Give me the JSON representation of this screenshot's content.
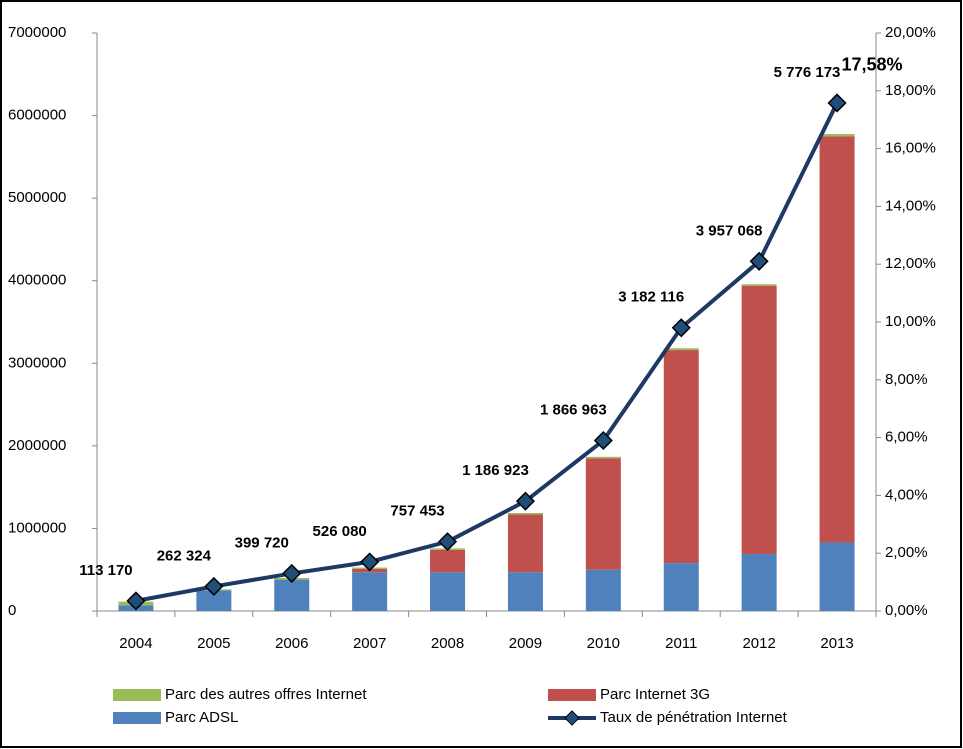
{
  "chart_data": {
    "type": "bar",
    "categories": [
      "2004",
      "2005",
      "2006",
      "2007",
      "2008",
      "2009",
      "2010",
      "2011",
      "2012",
      "2013"
    ],
    "series": [
      {
        "name": "Parc ADSL",
        "color": "#4f81bd",
        "values": [
          70000,
          250000,
          380000,
          470000,
          470000,
          470000,
          500000,
          580000,
          690000,
          830000
        ]
      },
      {
        "name": "Parc Internet 3G",
        "color": "#c0504d",
        "values": [
          0,
          0,
          0,
          40000,
          270000,
          700000,
          1350000,
          2580000,
          3250000,
          4920000
        ]
      },
      {
        "name": "Parc des autres offres Internet",
        "color": "#9bbb59",
        "values": [
          43170,
          12324,
          19720,
          16080,
          17453,
          16923,
          16963,
          22116,
          17068,
          26173
        ]
      },
      {
        "name": "Taux de pénétration Internet",
        "color": "#1f3864",
        "axis": "y2",
        "type": "line",
        "values": [
          0.35,
          0.85,
          1.3,
          1.7,
          2.4,
          3.8,
          5.9,
          9.8,
          12.1,
          17.58
        ],
        "value_labels": [
          null,
          null,
          null,
          null,
          null,
          null,
          null,
          null,
          null,
          "17,58%"
        ]
      }
    ],
    "data_labels": [
      "113 170",
      "262 324",
      "399 720",
      "526 080",
      "757 453",
      "1 186 923",
      "1 866 963",
      "3 182 116",
      "3 957 068",
      "5 776 173"
    ],
    "ylim": [
      0,
      7000000
    ],
    "yticks": [
      0,
      1000000,
      2000000,
      3000000,
      4000000,
      5000000,
      6000000,
      7000000
    ],
    "y2lim": [
      0,
      20
    ],
    "y2ticks": [
      {
        "value": 0,
        "label": "0,00%"
      },
      {
        "value": 2,
        "label": "2,00%"
      },
      {
        "value": 4,
        "label": "4,00%"
      },
      {
        "value": 6,
        "label": "6,00%"
      },
      {
        "value": 8,
        "label": "8,00%"
      },
      {
        "value": 10,
        "label": "10,00%"
      },
      {
        "value": 12,
        "label": "12,00%"
      },
      {
        "value": 14,
        "label": "14,00%"
      },
      {
        "value": 16,
        "label": "16,00%"
      },
      {
        "value": 18,
        "label": "18,00%"
      },
      {
        "value": 20,
        "label": "20,00%"
      }
    ],
    "grid": false
  }
}
